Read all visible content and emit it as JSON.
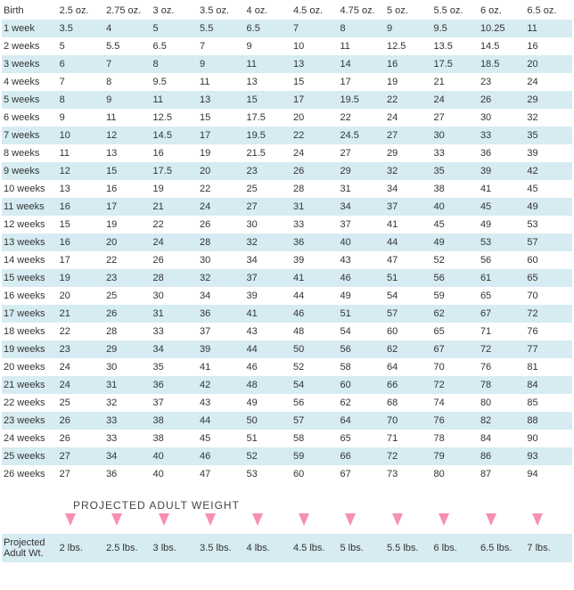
{
  "chart": {
    "type": "table",
    "colors": {
      "alt_row_bg": "#d6ecf2",
      "plain_row_bg": "#ffffff",
      "text": "#333333",
      "arrow": "#f78fb3"
    },
    "fontsize": 11,
    "header": [
      "Birth",
      "2.5 oz.",
      "2.75 oz.",
      "3 oz.",
      "3.5 oz.",
      "4 oz.",
      "4.5 oz.",
      "4.75 oz.",
      "5 oz.",
      "5.5 oz.",
      "6 oz.",
      "6.5 oz."
    ],
    "rows": [
      [
        "1 week",
        "3.5",
        "4",
        "5",
        "5.5",
        "6.5",
        "7",
        "8",
        "9",
        "9.5",
        "10.25",
        "11"
      ],
      [
        "2 weeks",
        "5",
        "5.5",
        "6.5",
        "7",
        "9",
        "10",
        "11",
        "12.5",
        "13.5",
        "14.5",
        "16"
      ],
      [
        "3 weeks",
        "6",
        "7",
        "8",
        "9",
        "11",
        "13",
        "14",
        "16",
        "17.5",
        "18.5",
        "20"
      ],
      [
        "4 weeks",
        "7",
        "8",
        "9.5",
        "11",
        "13",
        "15",
        "17",
        "19",
        "21",
        "23",
        "24"
      ],
      [
        "5 weeks",
        "8",
        "9",
        "11",
        "13",
        "15",
        "17",
        "19.5",
        "22",
        "24",
        "26",
        "29"
      ],
      [
        "6 weeks",
        "9",
        "11",
        "12.5",
        "15",
        "17.5",
        "20",
        "22",
        "24",
        "27",
        "30",
        "32"
      ],
      [
        "7 weeks",
        "10",
        "12",
        "14.5",
        "17",
        "19.5",
        "22",
        "24.5",
        "27",
        "30",
        "33",
        "35"
      ],
      [
        "8 weeks",
        "11",
        "13",
        "16",
        "19",
        "21.5",
        "24",
        "27",
        "29",
        "33",
        "36",
        "39"
      ],
      [
        "9 weeks",
        "12",
        "15",
        "17.5",
        "20",
        "23",
        "26",
        "29",
        "32",
        "35",
        "39",
        "42"
      ],
      [
        "10 weeks",
        "13",
        "16",
        "19",
        "22",
        "25",
        "28",
        "31",
        "34",
        "38",
        "41",
        "45"
      ],
      [
        "11 weeks",
        "16",
        "17",
        "21",
        "24",
        "27",
        "31",
        "34",
        "37",
        "40",
        "45",
        "49"
      ],
      [
        "12 weeks",
        "15",
        "19",
        "22",
        "26",
        "30",
        "33",
        "37",
        "41",
        "45",
        "49",
        "53"
      ],
      [
        "13 weeks",
        "16",
        "20",
        "24",
        "28",
        "32",
        "36",
        "40",
        "44",
        "49",
        "53",
        "57"
      ],
      [
        "14 weeks",
        "17",
        "22",
        "26",
        "30",
        "34",
        "39",
        "43",
        "47",
        "52",
        "56",
        "60"
      ],
      [
        "15 weeks",
        "19",
        "23",
        "28",
        "32",
        "37",
        "41",
        "46",
        "51",
        "56",
        "61",
        "65"
      ],
      [
        "16 weeks",
        "20",
        "25",
        "30",
        "34",
        "39",
        "44",
        "49",
        "54",
        "59",
        "65",
        "70"
      ],
      [
        "17 weeks",
        "21",
        "26",
        "31",
        "36",
        "41",
        "46",
        "51",
        "57",
        "62",
        "67",
        "72"
      ],
      [
        "18 weeks",
        "22",
        "28",
        "33",
        "37",
        "43",
        "48",
        "54",
        "60",
        "65",
        "71",
        "76"
      ],
      [
        "19 weeks",
        "23",
        "29",
        "34",
        "39",
        "44",
        "50",
        "56",
        "62",
        "67",
        "72",
        "77"
      ],
      [
        "20 weeks",
        "24",
        "30",
        "35",
        "41",
        "46",
        "52",
        "58",
        "64",
        "70",
        "76",
        "81"
      ],
      [
        "21 weeks",
        "24",
        "31",
        "36",
        "42",
        "48",
        "54",
        "60",
        "66",
        "72",
        "78",
        "84"
      ],
      [
        "22 weeks",
        "25",
        "32",
        "37",
        "43",
        "49",
        "56",
        "62",
        "68",
        "74",
        "80",
        "85"
      ],
      [
        "23 weeks",
        "26",
        "33",
        "38",
        "44",
        "50",
        "57",
        "64",
        "70",
        "76",
        "82",
        "88"
      ],
      [
        "24 weeks",
        "26",
        "33",
        "38",
        "45",
        "51",
        "58",
        "65",
        "71",
        "78",
        "84",
        "90"
      ],
      [
        "25 weeks",
        "27",
        "34",
        "40",
        "46",
        "52",
        "59",
        "66",
        "72",
        "79",
        "86",
        "93"
      ],
      [
        "26 weeks",
        "27",
        "36",
        "40",
        "47",
        "53",
        "60",
        "67",
        "73",
        "80",
        "87",
        "94"
      ]
    ],
    "projected_title": "PROJECTED ADULT WEIGHT",
    "projected_label": "Projected Adult Wt.",
    "projected": [
      "2 lbs.",
      "2.5 lbs.",
      "3 lbs.",
      "3.5 lbs.",
      "4 lbs.",
      "4.5 lbs.",
      "5 lbs.",
      "5.5 lbs.",
      "6 lbs.",
      "6.5 lbs.",
      "7 lbs."
    ]
  }
}
